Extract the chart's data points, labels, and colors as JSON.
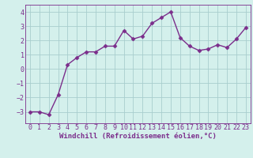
{
  "x": [
    0,
    1,
    2,
    3,
    4,
    5,
    6,
    7,
    8,
    9,
    10,
    11,
    12,
    13,
    14,
    15,
    16,
    17,
    18,
    19,
    20,
    21,
    22,
    23
  ],
  "y": [
    -3.0,
    -3.0,
    -3.2,
    -1.8,
    0.3,
    0.8,
    1.2,
    1.2,
    1.6,
    1.6,
    2.7,
    2.1,
    2.3,
    3.2,
    3.6,
    4.0,
    2.2,
    1.6,
    1.3,
    1.4,
    1.7,
    1.5,
    2.1,
    2.9
  ],
  "line_color": "#7b2d8b",
  "marker": "D",
  "markersize": 2.5,
  "linewidth": 1.0,
  "bg_color": "#d4f0ec",
  "grid_color": "#a8cece",
  "xlabel": "Windchill (Refroidissement éolien,°C)",
  "xlabel_fontsize": 6.5,
  "tick_fontsize": 6.0,
  "ylim": [
    -3.8,
    4.5
  ],
  "xlim": [
    -0.5,
    23.5
  ],
  "yticks": [
    -3,
    -2,
    -1,
    0,
    1,
    2,
    3,
    4
  ],
  "xticks": [
    0,
    1,
    2,
    3,
    4,
    5,
    6,
    7,
    8,
    9,
    10,
    11,
    12,
    13,
    14,
    15,
    16,
    17,
    18,
    19,
    20,
    21,
    22,
    23
  ]
}
